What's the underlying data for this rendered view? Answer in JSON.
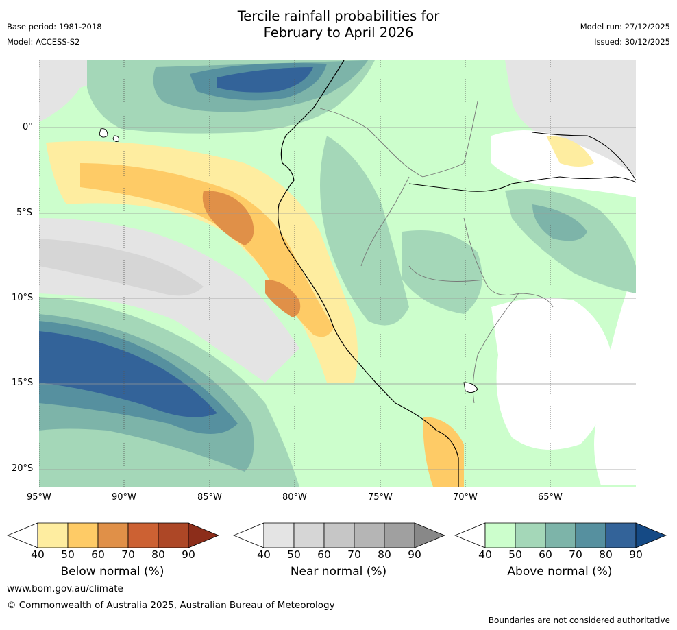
{
  "header": {
    "title_line1": "Tercile rainfall probabilities for",
    "title_line2": "February to April 2026",
    "base_period": "Base period: 1981-2018",
    "model": "Model: ACCESS-S2",
    "model_run": "Model run: 27/12/2025",
    "issued": "Issued: 30/12/2025"
  },
  "axes": {
    "lat_labels": [
      "0°",
      "5°S",
      "10°S",
      "15°S",
      "20°S"
    ],
    "lon_labels": [
      "95°W",
      "90°W",
      "85°W",
      "80°W",
      "75°W",
      "70°W",
      "65°W"
    ]
  },
  "legends": [
    {
      "title": "Below normal (%)",
      "ticks": [
        "40",
        "50",
        "60",
        "70",
        "80",
        "90"
      ],
      "colors": [
        "#ffffff",
        "#feeda0",
        "#fecb66",
        "#e09048",
        "#cc6133",
        "#ad4726",
        "#8c2d1a"
      ]
    },
    {
      "title": "Near normal (%)",
      "ticks": [
        "40",
        "50",
        "60",
        "70",
        "80",
        "90"
      ],
      "colors": [
        "#ffffff",
        "#e4e4e4",
        "#d6d6d6",
        "#c6c6c6",
        "#b5b5b5",
        "#a0a0a0",
        "#888888"
      ]
    },
    {
      "title": "Above normal (%)",
      "ticks": [
        "40",
        "50",
        "60",
        "70",
        "80",
        "90"
      ],
      "colors": [
        "#ffffff",
        "#ccfecc",
        "#a4d7b8",
        "#7db4a9",
        "#56909f",
        "#336399",
        "#154a85"
      ]
    }
  ],
  "footer": {
    "website": "www.bom.gov.au/climate",
    "copyright": "© Commonwealth of Australia 2025, Australian Bureau of Meteorology",
    "disclaimer": "Boundaries are not considered authoritative"
  },
  "map_data": {
    "region": "Western South America and eastern Pacific",
    "lon_range": [
      -95,
      -60
    ],
    "lat_range": [
      -21,
      4
    ],
    "gridlines": true
  }
}
